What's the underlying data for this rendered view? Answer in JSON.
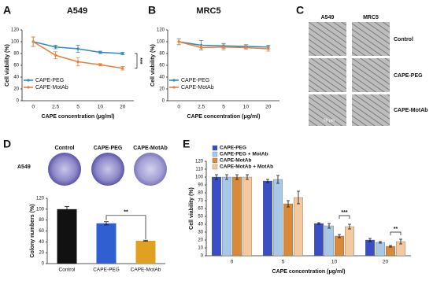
{
  "figure": {
    "panel_c": {
      "letter": "C",
      "columns": [
        "A549",
        "MRC5"
      ],
      "rows": [
        "Control",
        "CAPE-PEG",
        "CAPE-MotAb"
      ],
      "scale": "50 μm"
    },
    "panel_d_images": {
      "cell_line": "A549",
      "labels": [
        "Control",
        "CAPE-PEG",
        "CAPE-MotAb"
      ]
    }
  },
  "chart_data": [
    {
      "type": "line",
      "letter": "A",
      "title": "A549",
      "xlabel": "CAPE concentration (μg/ml)",
      "ylabel": "Cell viability (%)",
      "categories": [
        "0",
        "2.5",
        "5",
        "10",
        "20"
      ],
      "ylim": [
        0,
        120
      ],
      "yticks": [
        0,
        20,
        40,
        60,
        80,
        100,
        120
      ],
      "series": [
        {
          "name": "CAPE-PEG",
          "color": "#2e8bc0",
          "values": [
            100,
            91,
            88,
            82,
            80
          ],
          "errors": [
            8,
            3,
            6,
            2,
            2
          ]
        },
        {
          "name": "CAPE-MotAb",
          "color": "#e8803a",
          "values": [
            100,
            77,
            66,
            61,
            55
          ],
          "errors": [
            8,
            6,
            7,
            2,
            3
          ]
        }
      ],
      "annotations": [
        "***"
      ]
    },
    {
      "type": "line",
      "letter": "B",
      "title": "MRC5",
      "xlabel": "CAPE concentration (μg/ml)",
      "ylabel": "Cell viability (%)",
      "categories": [
        "0",
        "2.5",
        "5",
        "10",
        "20"
      ],
      "ylim": [
        0,
        120
      ],
      "yticks": [
        0,
        20,
        40,
        60,
        80,
        100,
        120
      ],
      "series": [
        {
          "name": "CAPE-PEG",
          "color": "#2e8bc0",
          "values": [
            100,
            94,
            93,
            92,
            91
          ],
          "errors": [
            5,
            8,
            4,
            3,
            3
          ]
        },
        {
          "name": "CAPE-MotAb",
          "color": "#e8803a",
          "values": [
            100,
            90,
            91,
            90,
            88
          ],
          "errors": [
            5,
            4,
            5,
            3,
            4
          ]
        }
      ],
      "annotations": []
    },
    {
      "type": "bar",
      "letter": "D",
      "ylabel": "Colony numbers (%)",
      "categories": [
        "Control",
        "CAPE-PEG",
        "CAPE-MotAb"
      ],
      "values": [
        100,
        74,
        42
      ],
      "errors": [
        5,
        3,
        1
      ],
      "colors": [
        "#111111",
        "#2f5fd0",
        "#e0a020"
      ],
      "ylim": [
        0,
        120
      ],
      "yticks": [
        0,
        20,
        40,
        60,
        80,
        100,
        120
      ],
      "annotations": [
        "**"
      ]
    },
    {
      "type": "grouped_bar",
      "letter": "E",
      "xlabel": "CAPE concentration (μg/ml)",
      "ylabel": "Cell viability (%)",
      "categories": [
        "0",
        "5",
        "10",
        "20"
      ],
      "ylim": [
        0,
        120
      ],
      "yticks": [
        0,
        10,
        20,
        30,
        40,
        50,
        60,
        70,
        80,
        90,
        100,
        110,
        120
      ],
      "series": [
        {
          "name": "CAPE-PEG",
          "color": "#3a4fc4",
          "values": [
            100,
            95,
            41,
            20
          ],
          "errors": [
            3,
            2,
            1,
            2
          ]
        },
        {
          "name": "CAPE-PEG + MotAb",
          "color": "#a8c8e8",
          "values": [
            100,
            97,
            38,
            17
          ],
          "errors": [
            3,
            5,
            3,
            1
          ]
        },
        {
          "name": "CAPE-MotAb",
          "color": "#d9893a",
          "values": [
            100,
            66,
            25,
            12
          ],
          "errors": [
            3,
            4,
            2,
            1
          ]
        },
        {
          "name": "CAPE-MotAb + MotAb",
          "color": "#f5c9a0",
          "values": [
            100,
            74,
            37,
            18
          ],
          "errors": [
            3,
            8,
            3,
            3
          ]
        }
      ],
      "annotations": [
        "***",
        "**"
      ]
    }
  ]
}
